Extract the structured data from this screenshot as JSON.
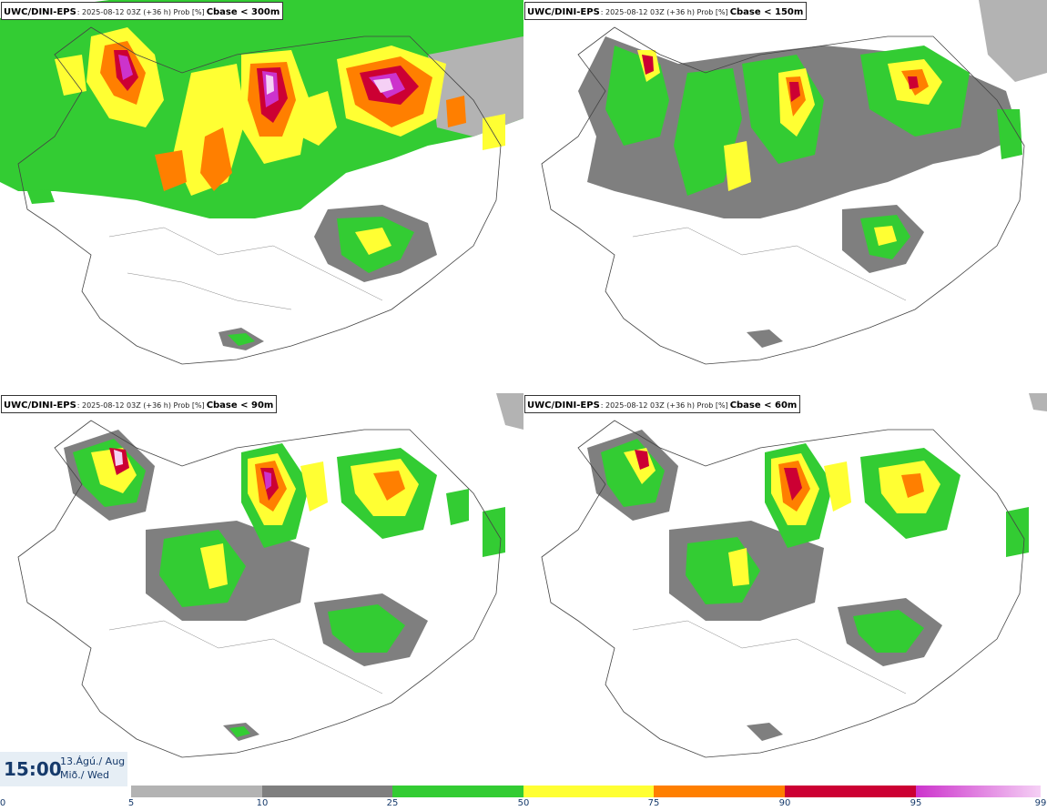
{
  "panels": [
    {
      "model": "UWC/DINI-EPS",
      "run": ": 2025-08-12 03Z (+36 h) Prob [%]",
      "field": "Cbase < 300m"
    },
    {
      "model": "UWC/DINI-EPS",
      "run": ": 2025-08-12 03Z (+36 h) Prob [%]",
      "field": "Cbase < 150m"
    },
    {
      "model": "UWC/DINI-EPS",
      "run": ": 2025-08-12 03Z (+36 h) Prob [%]",
      "field": "Cbase < 90m"
    },
    {
      "model": "UWC/DINI-EPS",
      "run": ": 2025-08-12 03Z (+36 h) Prob [%]",
      "field": "Cbase < 60m"
    }
  ],
  "valid_time": {
    "time": "15:00",
    "date_line1": "13.Ágú./ Aug",
    "date_line2": "Mið./ Wed"
  },
  "legend": {
    "ticks": [
      "0",
      "5",
      "10",
      "25",
      "50",
      "75",
      "90",
      "95",
      "99"
    ],
    "colors": [
      "#ffffff",
      "#b3b3b3",
      "#7f7f7f",
      "#33cc33",
      "#ffff33",
      "#ff7f00",
      "#cc0033",
      "#cc33cc",
      "#f5d0f5"
    ]
  }
}
